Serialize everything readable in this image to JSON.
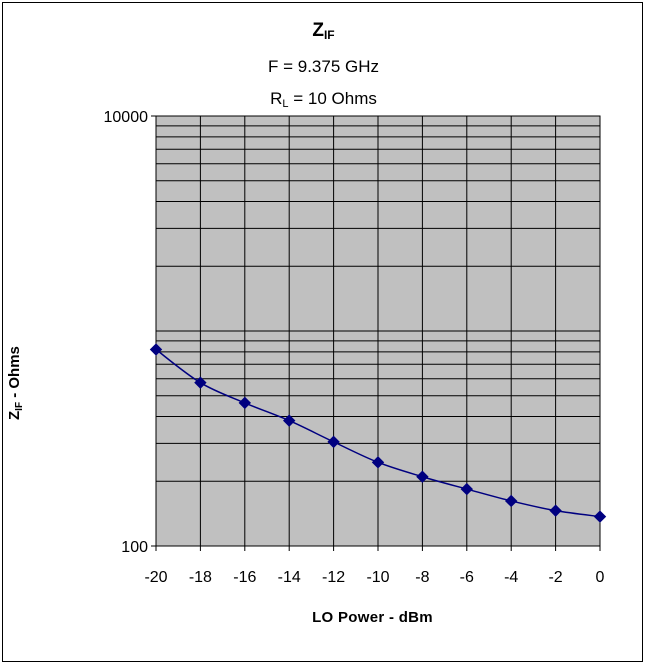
{
  "chart_data": {
    "type": "line",
    "title_main": "Z",
    "title_sub": "IF",
    "subtitle_1": "F = 9.375  GHz",
    "subtitle_2_main": "R",
    "subtitle_2_sub": "L",
    "subtitle_2_rest": " = 10 Ohms",
    "xlabel": "LO Power - dBm",
    "ylabel_main": "Z",
    "ylabel_sub": "IF",
    "ylabel_rest": " - Ohms",
    "xlim": [
      -20,
      0
    ],
    "ylim": [
      100,
      10000
    ],
    "yscale": "log",
    "x_ticks": [
      "-20",
      "-18",
      "-16",
      "-14",
      "-12",
      "-10",
      "-8",
      "-6",
      "-4",
      "-2",
      "0"
    ],
    "y_ticks": [
      "100",
      "10000"
    ],
    "grid": true,
    "marker": "diamond",
    "series": [
      {
        "color": "#000080",
        "x": [
          -20,
          -18,
          -16,
          -14,
          -12,
          -10,
          -8,
          -6,
          -4,
          -2,
          0
        ],
        "y": [
          820,
          575,
          463,
          383,
          305,
          245,
          210,
          184,
          162,
          146,
          137
        ]
      }
    ],
    "colors": {
      "plot_bg": "#c0c0c0",
      "line": "#000080"
    }
  }
}
